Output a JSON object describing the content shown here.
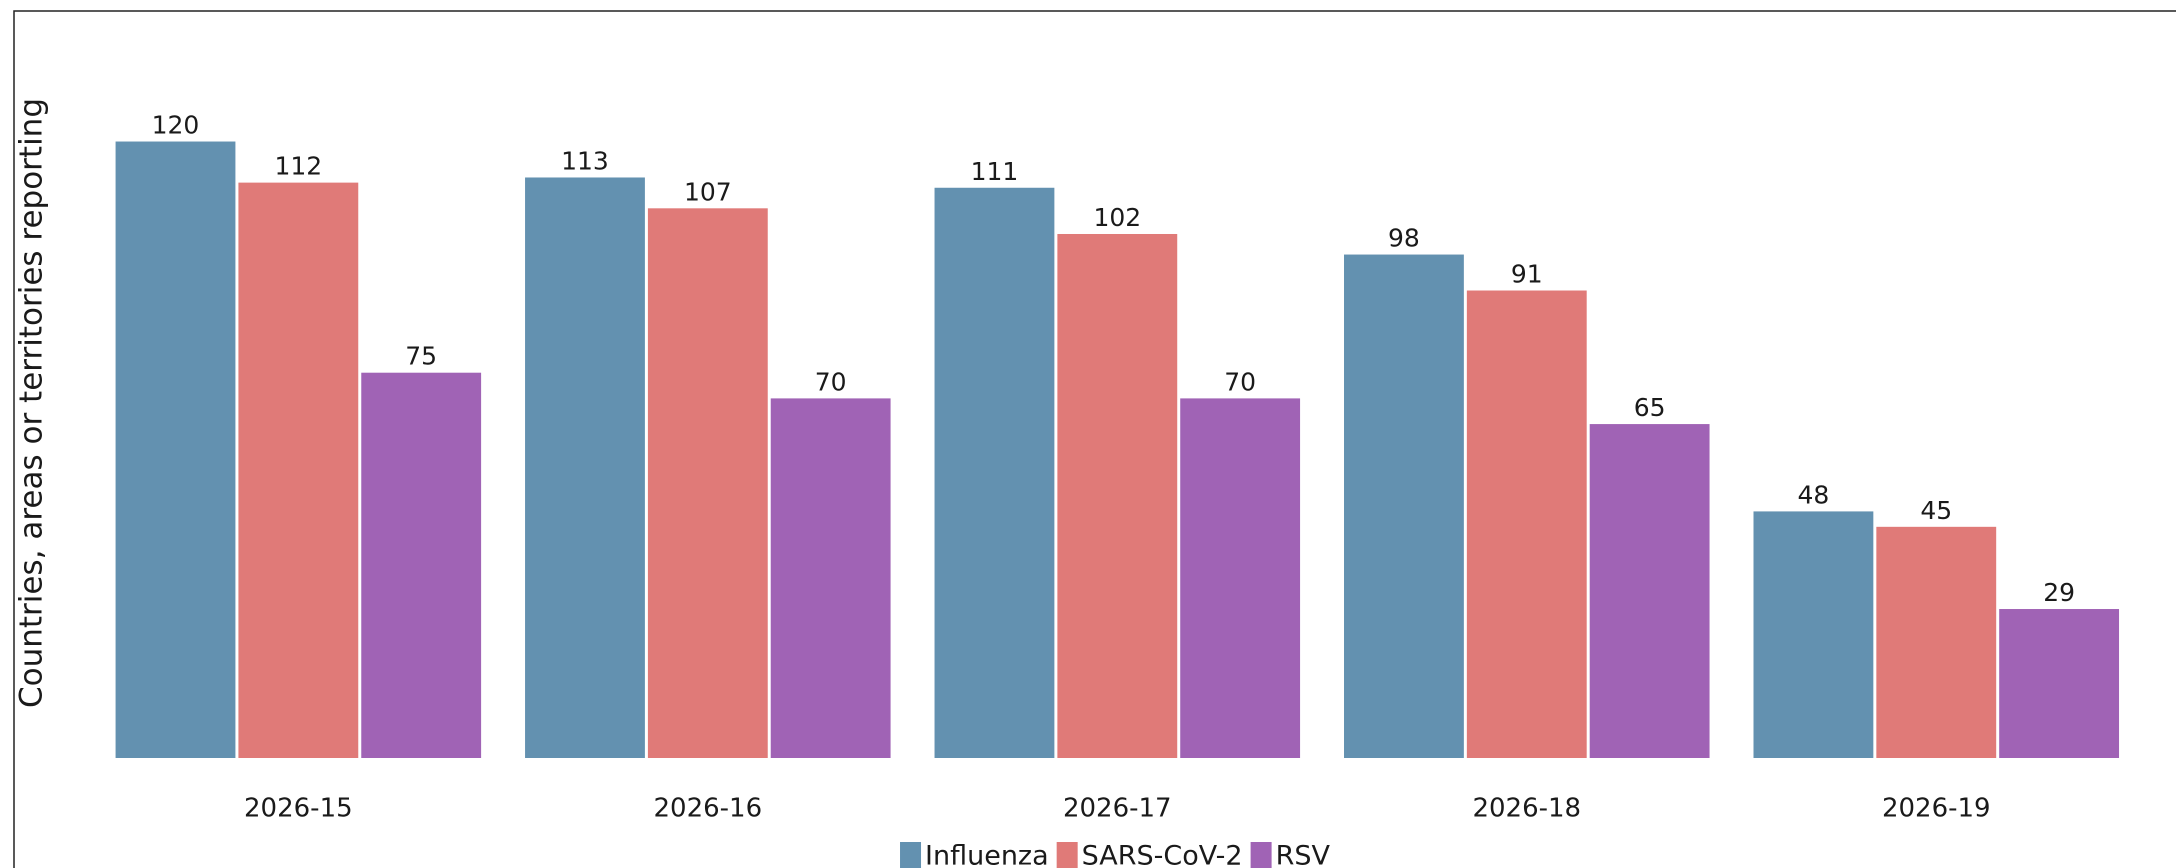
{
  "chart_data": {
    "type": "bar",
    "y_label": "Countries, areas or territories reporting",
    "categories": [
      "2026-15",
      "2026-16",
      "2026-17",
      "2026-18",
      "2026-19"
    ],
    "series": [
      {
        "name": "Influenza",
        "color": "#6391b0",
        "values": [
          120,
          113,
          111,
          98,
          48
        ]
      },
      {
        "name": "SARS-CoV-2",
        "color": "#e07a78",
        "values": [
          112,
          107,
          102,
          91,
          45
        ]
      },
      {
        "name": "RSV",
        "color": "#a063b5",
        "values": [
          75,
          70,
          70,
          65,
          29
        ]
      }
    ],
    "ylim": [
      0,
      126
    ],
    "legend": "bottom"
  }
}
